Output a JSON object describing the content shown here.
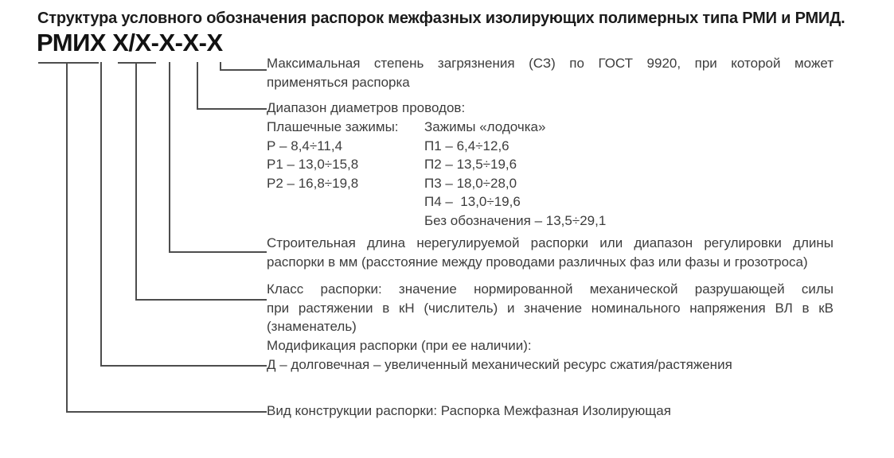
{
  "title": "Структура условного обозначения распорок межфазных изолирующих полимерных типа РМИ и РМИД.",
  "code": "РМИХ Х/Х-Х-Х-Х",
  "blocks": {
    "pollution": {
      "lines": [
        "Максимальная степень загрязнения (СЗ) по ГОСТ 9920, при которой может",
        "применяться распорка"
      ]
    },
    "diameters": {
      "heading": "Диапазон диаметров проводов:",
      "left_column": [
        "Плашечные зажимы:",
        "Р – 8,4÷11,4",
        "Р1 – 13,0÷15,8",
        "Р2 – 16,8÷19,8"
      ],
      "right_column": [
        "Зажимы «лодочка»",
        "П1 – 6,4÷12,6",
        "П2 – 13,5÷19,6",
        "П3 – 18,0÷28,0",
        "П4 –  13,0÷19,6",
        "Без обозначения – 13,5÷29,1"
      ]
    },
    "length": {
      "lines": [
        "Строительная длина нерегулируемой распорки или диапазон регулировки длины",
        "распорки в мм (расстояние между проводами различных фаз или фазы и грозотроса)"
      ]
    },
    "class": {
      "lines": [
        "Класс распорки: значение нормированной механической разрушающей силы",
        "при растяжении в кН (числитель) и значение номинального напряжения ВЛ в кВ",
        "(знаменатель)"
      ]
    },
    "modification": {
      "lines": [
        "Модификация распорки (при ее наличии):",
        "Д – долговечная – увеличенный механический ресурс сжатия/растяжения"
      ]
    },
    "construction": {
      "line": "Вид конструкции распорки: Распорка Межфазная Изолирующая"
    }
  }
}
